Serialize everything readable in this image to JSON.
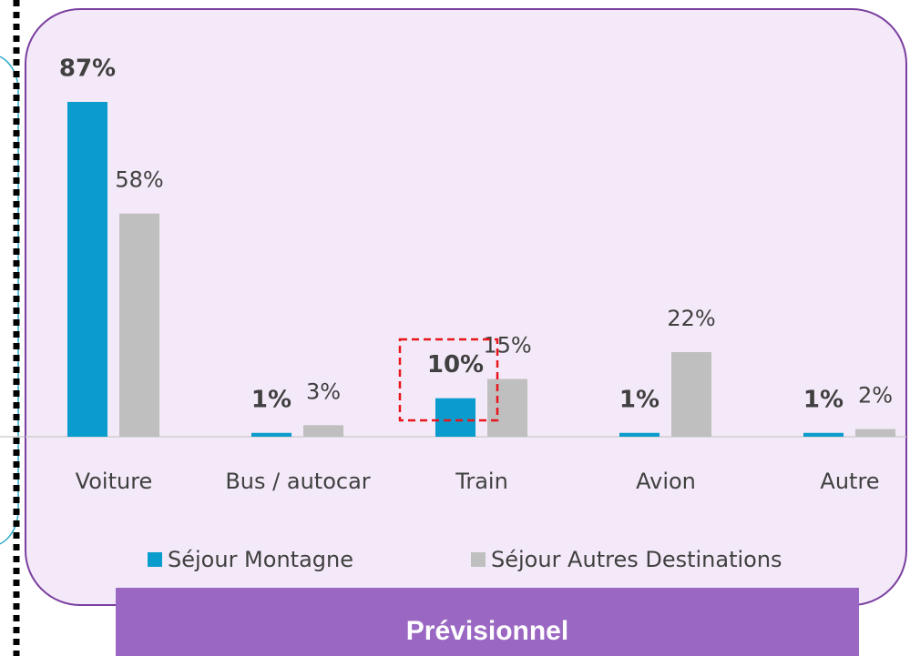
{
  "chart_data": {
    "type": "bar",
    "categories": [
      "Voiture",
      "Bus / autocar",
      "Train",
      "Avion",
      "Autre"
    ],
    "series": [
      {
        "name": "Séjour Montagne",
        "color": "#0a9ccc",
        "values": [
          87,
          1,
          10,
          1,
          1
        ],
        "value_labels": [
          "87%",
          "1%",
          "10%",
          "1%",
          "1%"
        ]
      },
      {
        "name": "Séjour Autres Destinations",
        "color": "#bfbfbf",
        "values": [
          58,
          3,
          15,
          22,
          2
        ],
        "value_labels": [
          "58%",
          "3%",
          "15%",
          "22%",
          "2%"
        ]
      }
    ],
    "ylim": [
      0,
      100
    ],
    "footer": "Prévisionnel"
  }
}
